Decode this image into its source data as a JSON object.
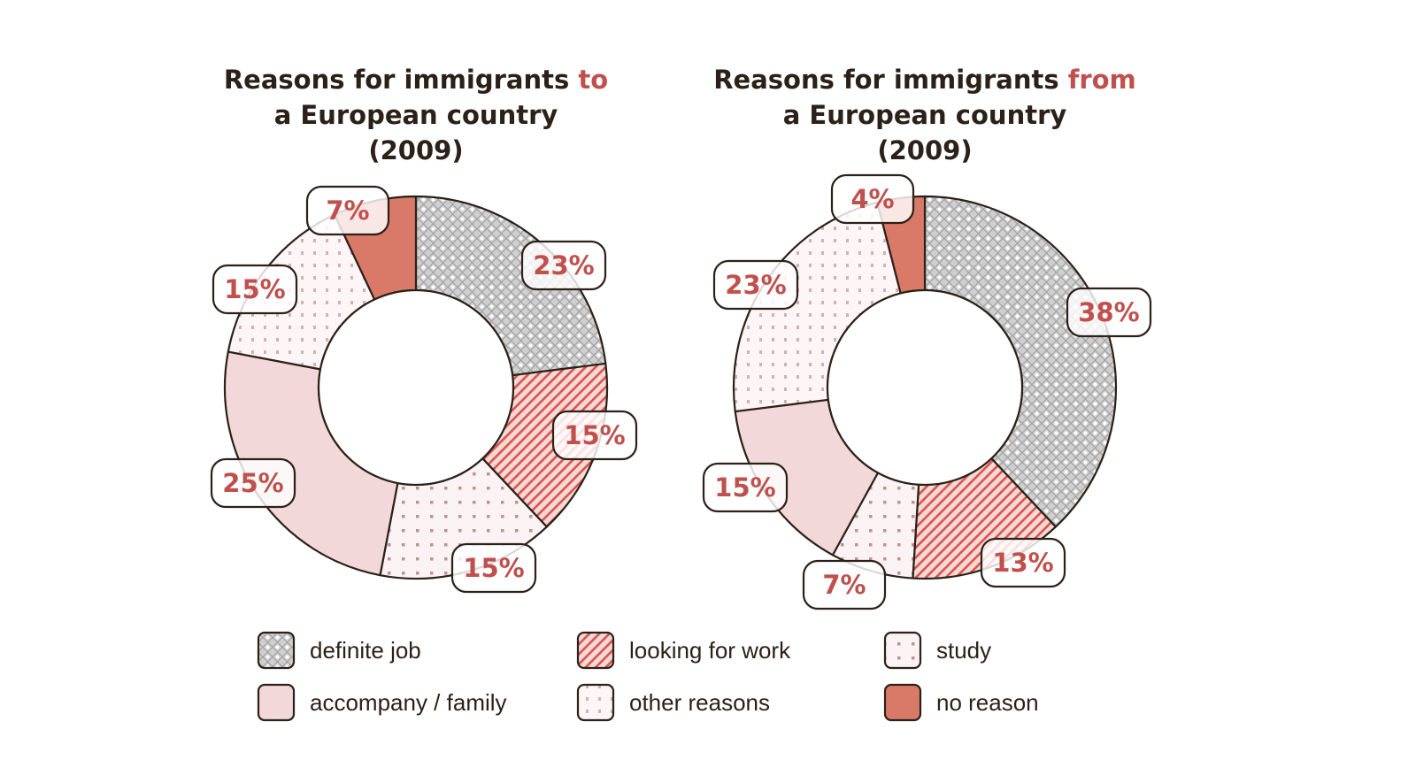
{
  "chart_data": [
    {
      "type": "pie",
      "title_parts": [
        "Reasons for immigrants ",
        "to",
        "a European country",
        "(2009)"
      ],
      "categories": [
        "definite job",
        "looking for work",
        "study",
        "accompany / family",
        "other reasons",
        "no reason"
      ],
      "values": [
        23,
        15,
        15,
        25,
        15,
        7
      ],
      "labels": [
        "23%",
        "15%",
        "15%",
        "25%",
        "15%",
        "7%"
      ]
    },
    {
      "type": "pie",
      "title_parts": [
        "Reasons for immigrants ",
        "from",
        "a European country",
        "(2009)"
      ],
      "categories": [
        "definite job",
        "looking for work",
        "study",
        "accompany / family",
        "other reasons",
        "no reason"
      ],
      "values": [
        38,
        13,
        7,
        15,
        23,
        4
      ],
      "labels": [
        "38%",
        "13%",
        "7%",
        "15%",
        "23%",
        "4%"
      ]
    }
  ],
  "legend": [
    {
      "label": "definite job",
      "pattern": "pat-job"
    },
    {
      "label": "looking for work",
      "pattern": "pat-hatch"
    },
    {
      "label": "study",
      "pattern": "pat-study"
    },
    {
      "label": "accompany / family",
      "pattern": "solid-pink"
    },
    {
      "label": "other reasons",
      "pattern": "pat-other"
    },
    {
      "label": "no reason",
      "pattern": "solid-red"
    }
  ],
  "colors": {
    "accent": "#c0504d",
    "no_reason": "#d97968",
    "family": "#f2d8d8",
    "hatch": "#d9534f",
    "job_bg": "#d4d4d4",
    "ink": "#2b2118"
  }
}
